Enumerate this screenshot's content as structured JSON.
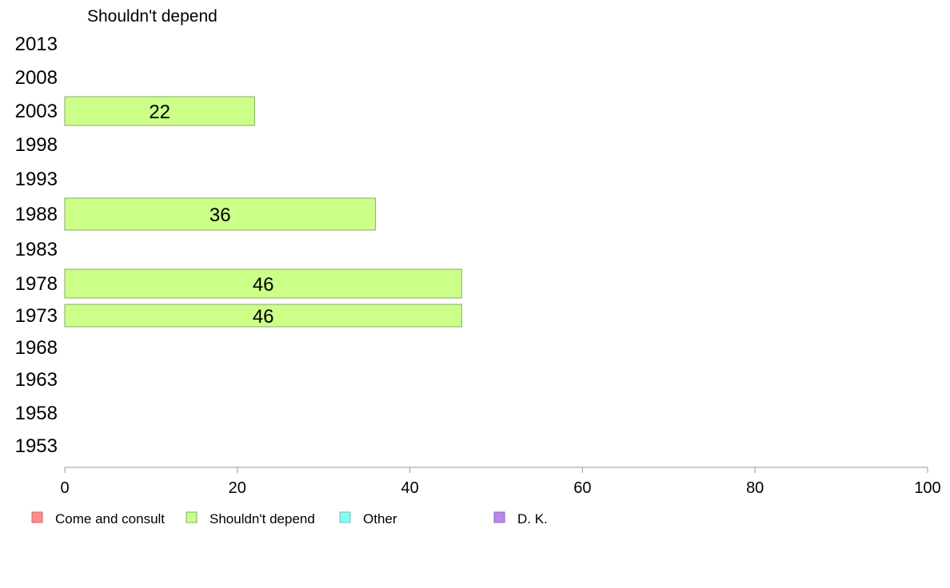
{
  "chart_data": {
    "type": "bar",
    "orientation": "horizontal",
    "title": "Shouldn't depend",
    "categories": [
      "2013",
      "2008",
      "2003",
      "1998",
      "1993",
      "1988",
      "1983",
      "1978",
      "1973",
      "1968",
      "1963",
      "1958",
      "1953"
    ],
    "series": [
      {
        "name": "Shouldn't depend",
        "values": [
          null,
          null,
          22,
          null,
          null,
          36,
          null,
          46,
          46,
          null,
          null,
          null,
          null
        ],
        "color": "#ccff88"
      }
    ],
    "x_ticks": [
      "0",
      "20",
      "40",
      "60",
      "80",
      "100"
    ],
    "xlim": [
      0,
      100
    ],
    "grid": false,
    "legend_position": "bottom",
    "legend": [
      {
        "label": "Come and consult",
        "color": "#ff8c8c"
      },
      {
        "label": "Shouldn't depend",
        "color": "#ccff88"
      },
      {
        "label": "Other",
        "color": "#88ffee"
      },
      {
        "label": "D. K.",
        "color": "#bb88ee"
      }
    ]
  }
}
